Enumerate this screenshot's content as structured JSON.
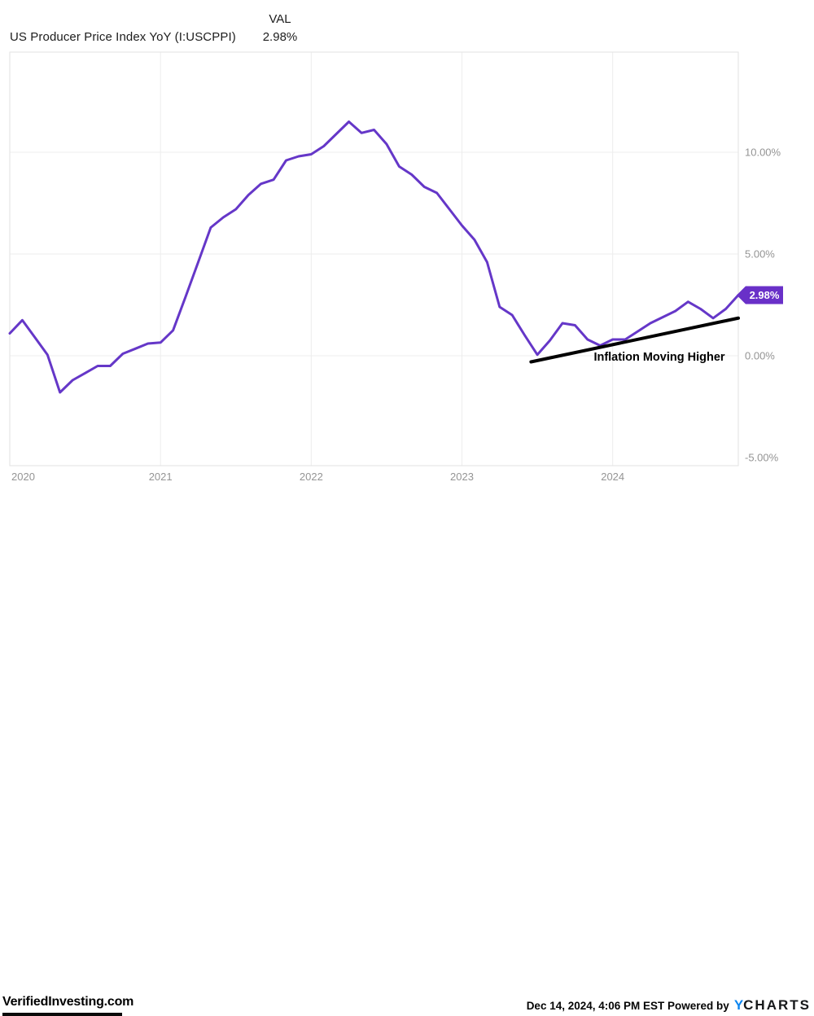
{
  "header": {
    "title": "US Producer Price Index YoY (I:USCPPI)",
    "val_label": "VAL",
    "val_value": "2.98%"
  },
  "chart_data": {
    "type": "line",
    "title": "US Producer Price Index YoY (I:USCPPI)",
    "ylabel": "",
    "xlabel": "",
    "grid": true,
    "ylim": [
      -5.4,
      14.92
    ],
    "y_ticks": [
      10,
      5,
      0,
      -5
    ],
    "y_tick_labels": [
      "10.00%",
      "5.00%",
      "0.00%",
      "-5.00%"
    ],
    "x_tick_labels": [
      "2020",
      "2021",
      "2022",
      "2023",
      "2024"
    ],
    "x_tick_month_indices": [
      0,
      12,
      24,
      36,
      48
    ],
    "series": [
      {
        "name": "US Producer Price Index YoY",
        "color": "#6537c8",
        "months": [
          "2020-01",
          "2020-02",
          "2020-03",
          "2020-04",
          "2020-05",
          "2020-06",
          "2020-07",
          "2020-08",
          "2020-09",
          "2020-10",
          "2020-11",
          "2020-12",
          "2021-01",
          "2021-02",
          "2021-03",
          "2021-04",
          "2021-05",
          "2021-06",
          "2021-07",
          "2021-08",
          "2021-09",
          "2021-10",
          "2021-11",
          "2021-12",
          "2022-01",
          "2022-02",
          "2022-03",
          "2022-04",
          "2022-05",
          "2022-06",
          "2022-07",
          "2022-08",
          "2022-09",
          "2022-10",
          "2022-11",
          "2022-12",
          "2023-01",
          "2023-02",
          "2023-03",
          "2023-04",
          "2023-05",
          "2023-06",
          "2023-07",
          "2023-08",
          "2023-09",
          "2023-10",
          "2023-11",
          "2023-12",
          "2024-01",
          "2024-02",
          "2024-03",
          "2024-04",
          "2024-05",
          "2024-06",
          "2024-07",
          "2024-08",
          "2024-09",
          "2024-10",
          "2024-11"
        ],
        "values": [
          1.1,
          1.75,
          0.9,
          0.05,
          -1.8,
          -1.2,
          -0.85,
          -0.5,
          -0.5,
          0.1,
          0.35,
          0.6,
          0.65,
          1.25,
          2.9,
          4.6,
          6.3,
          6.8,
          7.2,
          7.9,
          8.45,
          8.65,
          9.6,
          9.8,
          9.9,
          10.3,
          10.9,
          11.5,
          10.95,
          11.1,
          10.4,
          9.3,
          8.9,
          8.3,
          8.0,
          7.2,
          6.4,
          5.7,
          4.6,
          2.4,
          2.0,
          1.0,
          0.05,
          0.75,
          1.6,
          1.5,
          0.8,
          0.5,
          0.8,
          0.8,
          1.2,
          1.6,
          1.9,
          2.2,
          2.65,
          2.3,
          1.85,
          2.3,
          2.98
        ]
      }
    ],
    "end_badge": {
      "text": "2.98%",
      "color": "#6930c8",
      "text_color": "#ffffff"
    },
    "annotation": {
      "text": "Inflation Moving Higher",
      "color": "#000000",
      "trend_line": {
        "start_month_index": 41.5,
        "start_value": -0.3,
        "end_month_index": 58,
        "end_value": 1.85,
        "color": "#000000",
        "width": 4
      }
    },
    "colors": {
      "gridline": "#ededed",
      "plot_border": "#e2e2e2",
      "axis_text": "#949494"
    }
  },
  "footer": {
    "watermark": "VerifiedInvesting.com",
    "timestamp": "Dec 14, 2024, 4:06 PM EST",
    "powered_by": "Powered by",
    "logo_y": "Y",
    "logo_rest": "CHARTS"
  }
}
